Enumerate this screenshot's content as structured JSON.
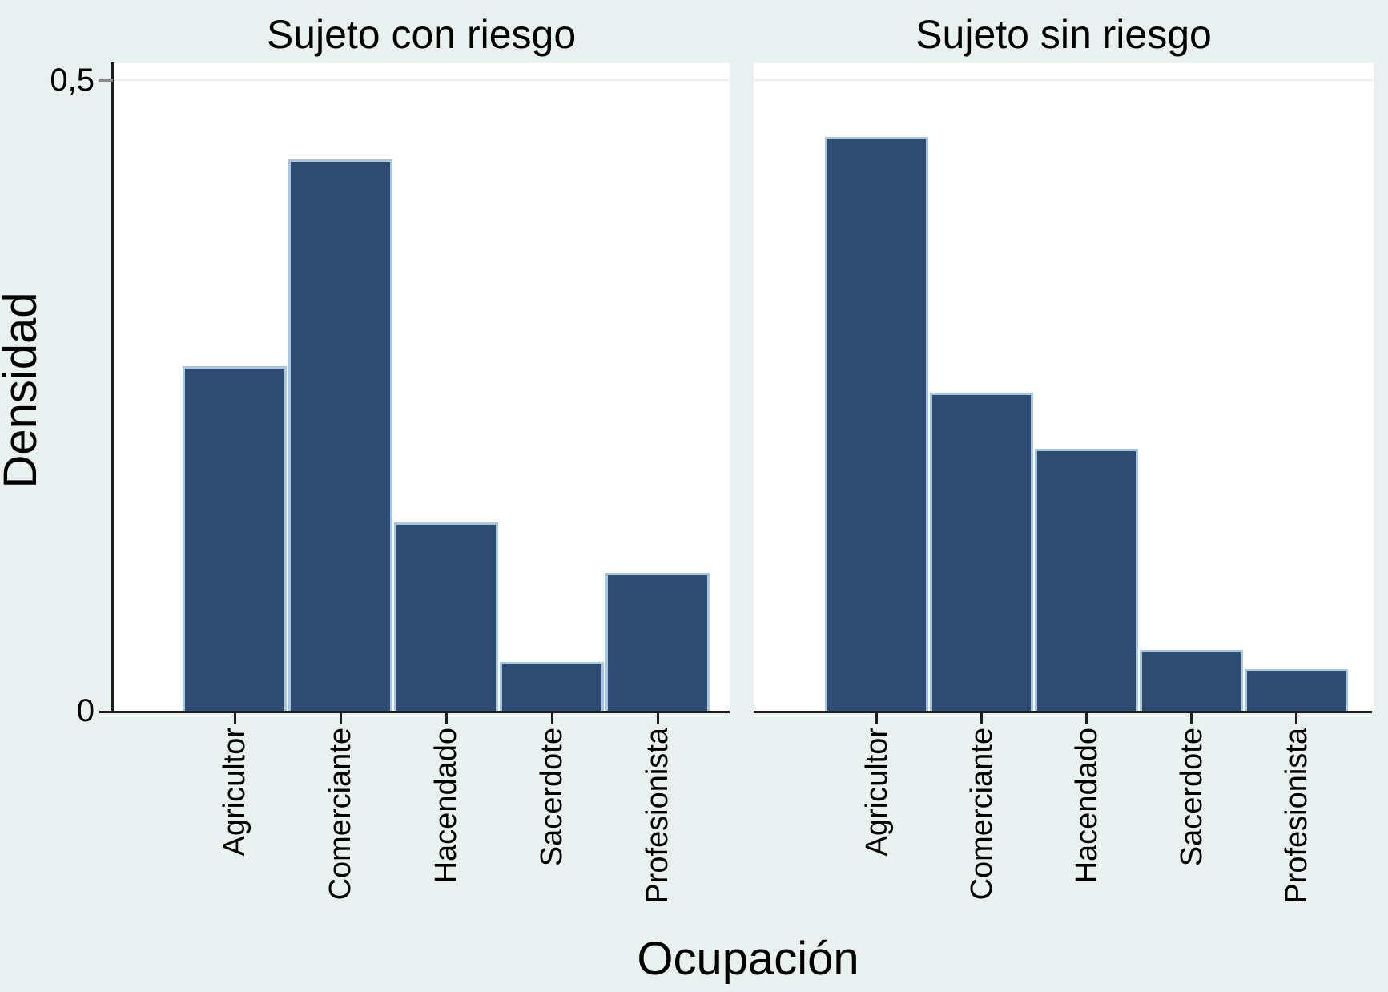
{
  "figure": {
    "panels": [
      {
        "title": "Sujeto con riesgo"
      },
      {
        "title": "Sujeto sin riesgo"
      }
    ],
    "y_axis": {
      "title": "Densidad",
      "tick_labels": [
        "0",
        "0,5"
      ]
    },
    "x_axis": {
      "title": "Ocupación"
    }
  },
  "chart_data": {
    "type": "bar",
    "layout": "two side-by-side panels sharing one y axis, categorical histogram (density)",
    "title": "",
    "xlabel": "Ocupación",
    "ylabel": "Densidad",
    "ylim": [
      0,
      0.5
    ],
    "yticks": [
      {
        "value": 0,
        "label": "0"
      },
      {
        "value": 0.5,
        "label": "0,5"
      }
    ],
    "grid": "single faint horizontal gridline at y=0.5",
    "legend": "none",
    "categories": [
      "Agricultor",
      "Comerciante",
      "Hacendado",
      "Sacerdote",
      "Profesionista"
    ],
    "series": [
      {
        "name": "Sujeto con riesgo",
        "values": [
          0.273,
          0.437,
          0.149,
          0.039,
          0.109
        ]
      },
      {
        "name": "Sujeto sin riesgo",
        "values": [
          0.455,
          0.252,
          0.208,
          0.048,
          0.033
        ]
      }
    ],
    "colors": {
      "bar_fill": "#2e4b71",
      "bar_outline": "#a7c6e2",
      "figure_background": "#e8f1ef",
      "plot_background": "#ffffff",
      "axis_line": "#1c1c1c",
      "y_tick": "#8a8a8a",
      "gridline": "#ededed",
      "text": "#000000"
    }
  }
}
